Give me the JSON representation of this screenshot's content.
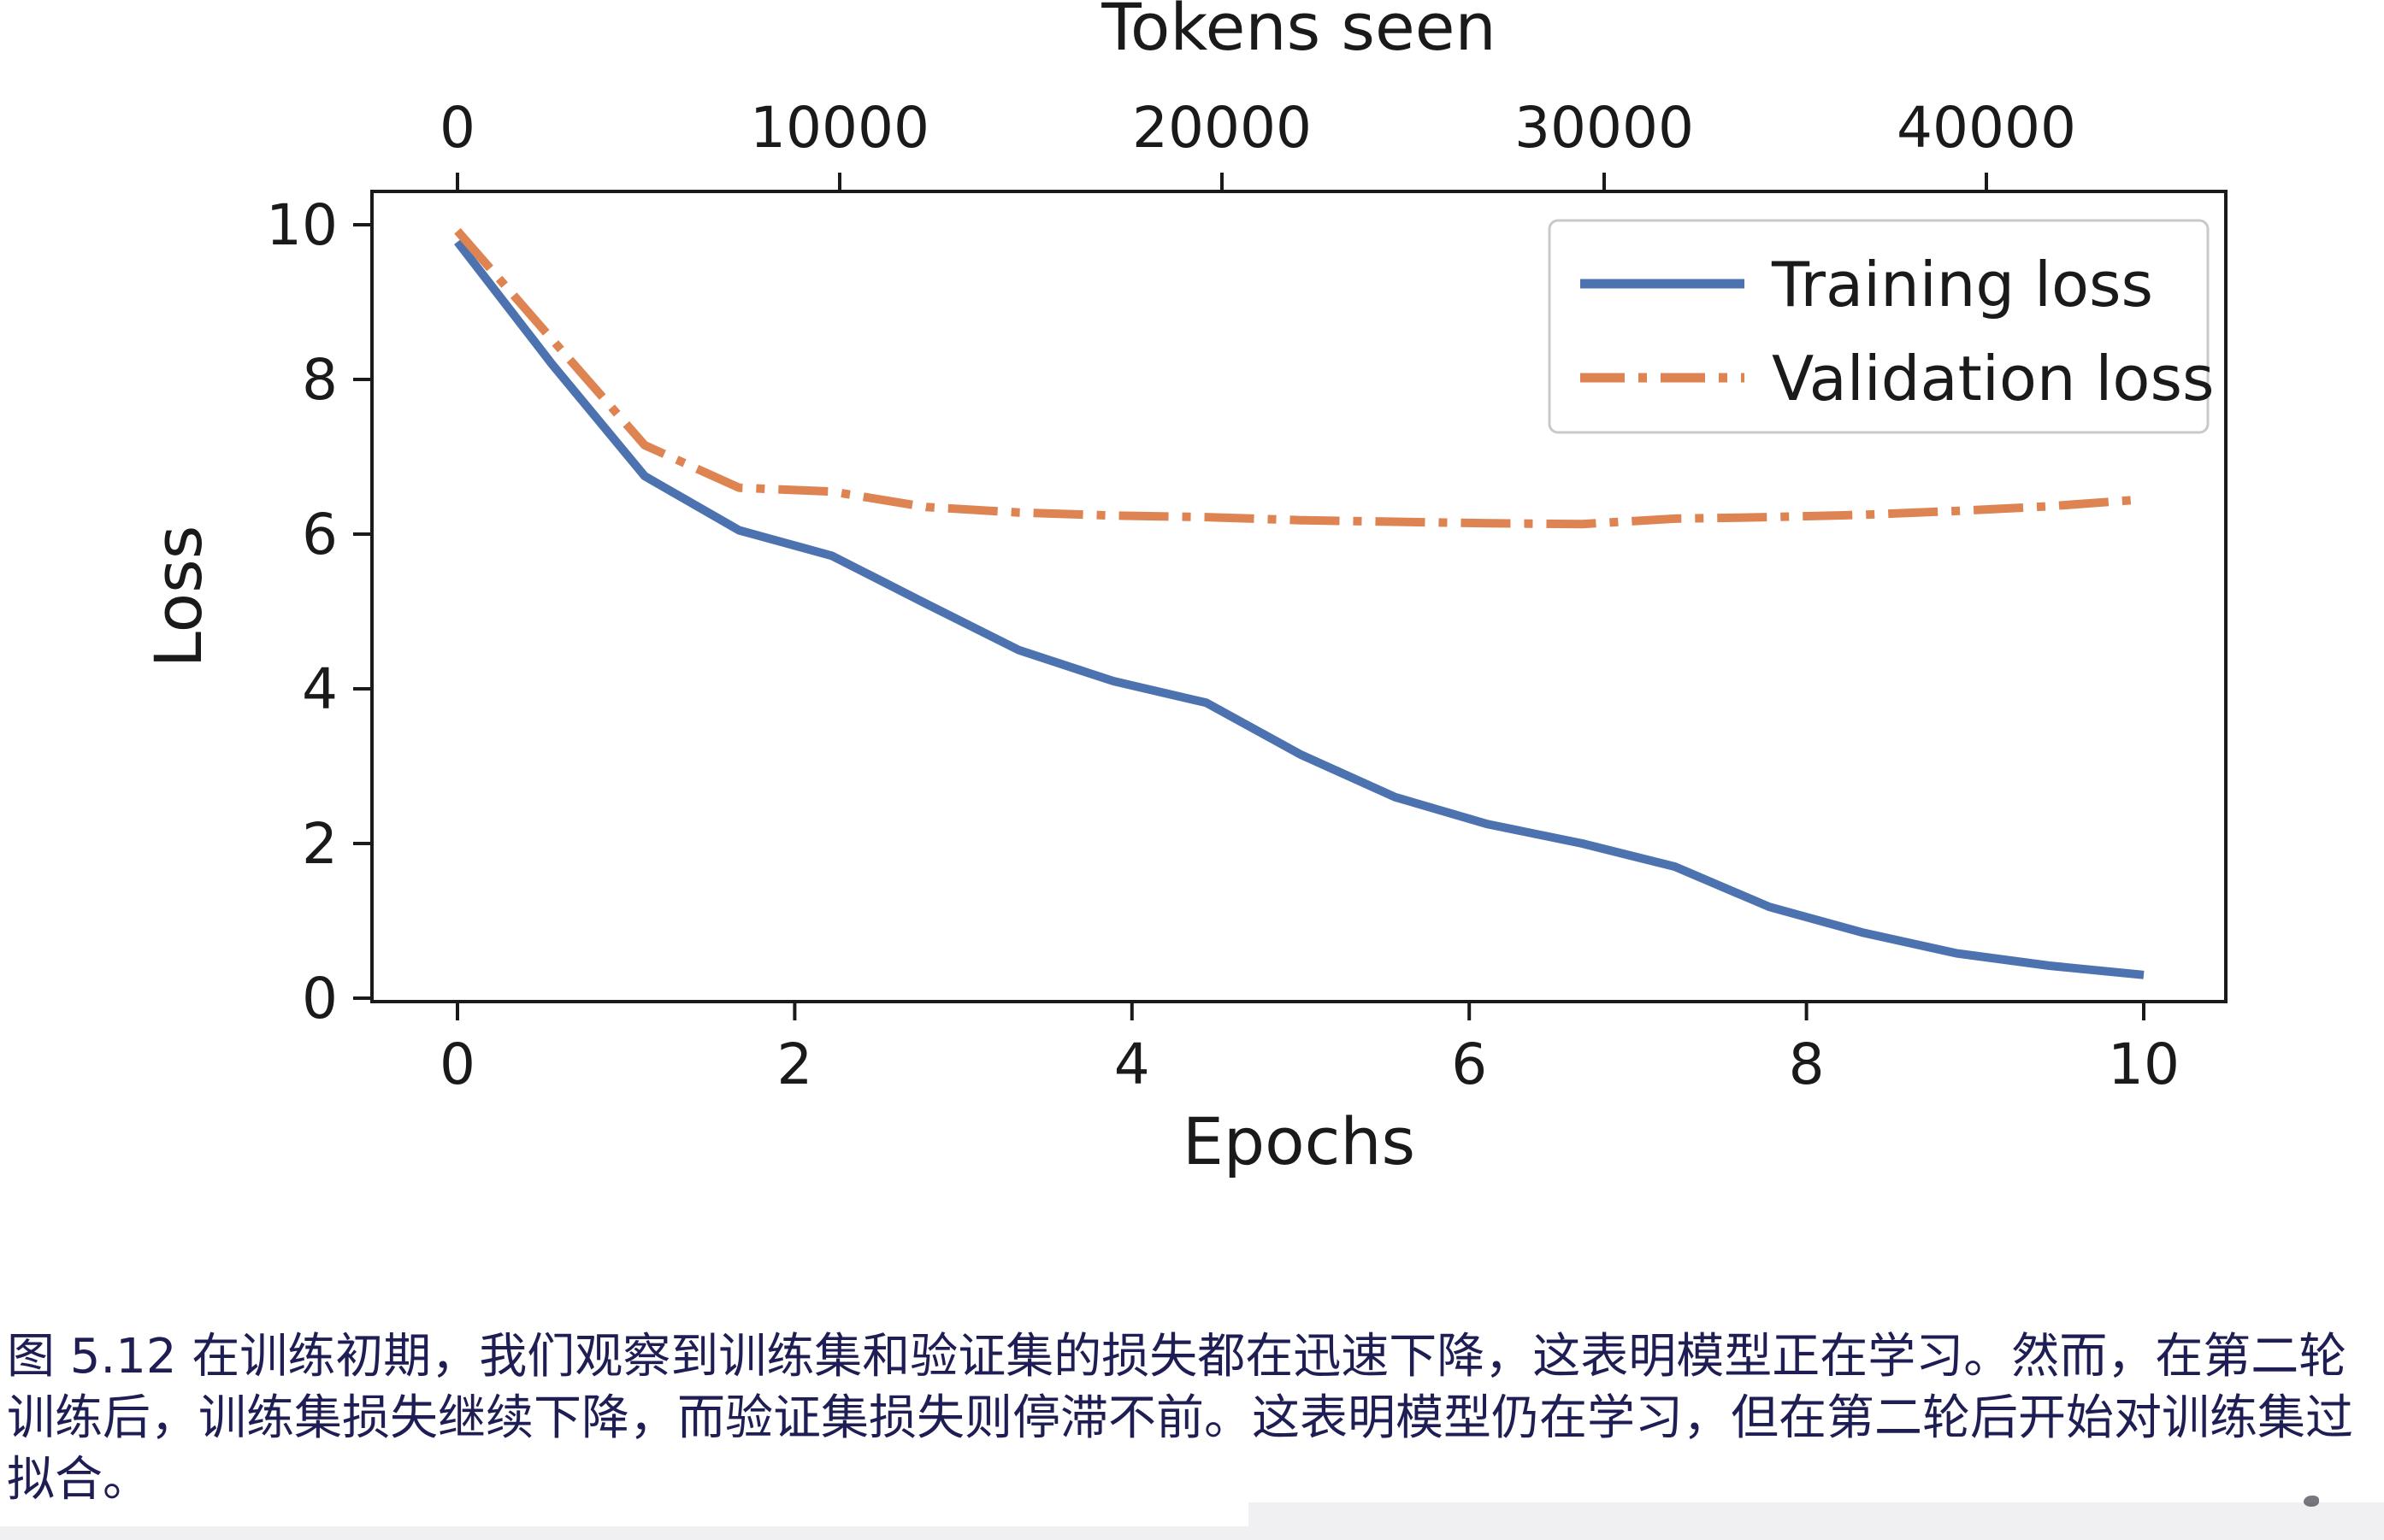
{
  "figure": {
    "caption": "图 5.12 在训练初期，我们观察到训练集和验证集的损失都在迅速下降，这表明模型正在学习。然而，在第二轮训练后，训练集损失继续下降，而验证集损失则停滞不前。这表明模型仍在学习，但在第二轮后开始对训练集过拟合。"
  },
  "chart_data": {
    "type": "line",
    "title": "",
    "top_axis": {
      "label": "Tokens seen",
      "ticks": [
        0,
        10000,
        20000,
        30000,
        40000
      ],
      "max": 44100
    },
    "xlabel": "Epochs",
    "x_ticks": [
      0,
      2,
      4,
      6,
      8,
      10
    ],
    "xlim": [
      -0.5,
      10.5
    ],
    "ylabel": "Loss",
    "y_ticks": [
      0,
      2,
      4,
      6,
      8,
      10
    ],
    "ylim": [
      -0.05,
      10.45
    ],
    "grid": false,
    "legend": {
      "position": "upper right"
    },
    "x": [
      0,
      0.56,
      1.11,
      1.67,
      2.22,
      2.78,
      3.33,
      3.89,
      4.44,
      5.0,
      5.56,
      6.11,
      6.67,
      7.22,
      7.78,
      8.33,
      8.89,
      9.44,
      10.0
    ],
    "series": [
      {
        "name": "Training loss",
        "color": "#4C72B0",
        "line_style": "solid",
        "values": [
          9.78,
          8.2,
          6.75,
          6.05,
          5.72,
          5.1,
          4.5,
          4.1,
          3.82,
          3.15,
          2.6,
          2.25,
          2.0,
          1.7,
          1.18,
          0.85,
          0.58,
          0.42,
          0.3
        ]
      },
      {
        "name": "Validation loss",
        "color": "#DD8452",
        "line_style": "dashdot",
        "values": [
          9.92,
          8.52,
          7.15,
          6.6,
          6.55,
          6.35,
          6.28,
          6.24,
          6.22,
          6.18,
          6.16,
          6.14,
          6.13,
          6.2,
          6.22,
          6.25,
          6.3,
          6.36,
          6.45
        ]
      }
    ]
  },
  "colors": {
    "training_line": "#4C72B0",
    "validation_line": "#DD8452",
    "axis": "#1A1A1A",
    "legend_border": "#C9C9C9",
    "caption_text": "#1E1E55",
    "background": "#FFFFFF",
    "bottom_strip": "#F0F0F3"
  }
}
